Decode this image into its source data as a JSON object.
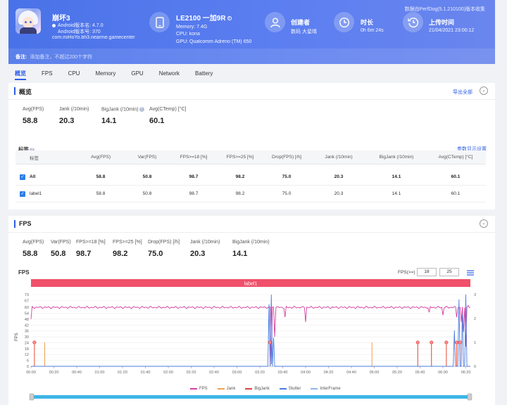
{
  "header": {
    "app_name": "崩坏3",
    "app_version": "Android版本名: 4.7.0",
    "app_build": "Android版本号: 370",
    "package": "com.miHoYo.bh3.nearme.gamecenter",
    "device_name": "LE2100 一加9R",
    "memory": "Memory: 7.4G",
    "cpu": "CPU: kona",
    "gpu": "GPU: Qualcomm Adreno (TM) 650",
    "creator_title": "创建者",
    "creator_value": "数码 大星晴",
    "duration_title": "时长",
    "duration_value": "0h 6m 24s",
    "upload_title": "上传时间",
    "upload_value": "21/04/2021 23:00:12",
    "data_source": "数据由PerfDog(5.1.210100)版本收集",
    "note_label": "备注:",
    "note_placeholder": "添加备注，不超过200个字符"
  },
  "tabs": [
    "概览",
    "FPS",
    "CPU",
    "Memory",
    "GPU",
    "Network",
    "Battery"
  ],
  "overview": {
    "title": "概览",
    "export_label": "导出全部",
    "stats": [
      {
        "label": "Avg(FPS)",
        "value": "58.8"
      },
      {
        "label": "Jank (/10min)",
        "value": "20.3"
      },
      {
        "label": "BigJank (/10min)",
        "value": "14.1"
      },
      {
        "label": "Avg(CTemp) [°C]",
        "value": "60.1"
      }
    ],
    "tags_label": "标签",
    "param_settings": "参数显示设置",
    "table": {
      "headers": [
        "标签",
        "Avg(FPS)",
        "Var(FPS)",
        "FPS>=18 [%]",
        "FPS>=25 [%]",
        "Drop(FPS) [/h]",
        "Jank (/10min)",
        "BigJank (/10min)",
        "Avg(CTemp) [°C]"
      ],
      "rows": [
        [
          "All",
          "58.8",
          "50.8",
          "98.7",
          "98.2",
          "75.0",
          "20.3",
          "14.1",
          "60.1"
        ],
        [
          "label1",
          "58.8",
          "50.8",
          "98.7",
          "98.2",
          "75.0",
          "20.3",
          "14.1",
          "60.1"
        ]
      ]
    }
  },
  "fps_section": {
    "title": "FPS",
    "stats": [
      {
        "label": "Avg(FPS)",
        "value": "58.8"
      },
      {
        "label": "Var(FPS)",
        "value": "50.8"
      },
      {
        "label": "FPS>=18 [%]",
        "value": "98.7"
      },
      {
        "label": "FPS>=25 [%]",
        "value": "98.2"
      },
      {
        "label": "Drop(FPS) [/h]",
        "value": "75.0"
      },
      {
        "label": "Jank (/10min)",
        "value": "20.3"
      },
      {
        "label": "BigJank (/10min)",
        "value": "14.1"
      }
    ],
    "chart_title": "FPS",
    "threshold_label": "FPS(>=)",
    "threshold_1": "18",
    "threshold_2": "25",
    "label_bar": "label1"
  },
  "chart_data": {
    "type": "line",
    "ylabel": "FPS",
    "y_ticks": [
      0,
      6,
      12,
      18,
      24,
      30,
      36,
      42,
      48,
      54,
      60,
      67,
      73
    ],
    "y2_ticks": [
      0,
      1,
      2,
      3
    ],
    "ylim": [
      0,
      73
    ],
    "y2lim": [
      0,
      3
    ],
    "x_ticks": [
      "00:00",
      "00:20",
      "00:40",
      "01:00",
      "01:20",
      "01:40",
      "02:00",
      "02:20",
      "02:40",
      "03:00",
      "03:20",
      "03:40",
      "04:00",
      "04:20",
      "04:40",
      "05:00",
      "05:20",
      "05:40",
      "06:00",
      "06:20"
    ],
    "duration_seconds": 384,
    "fps_base": 60,
    "fps_dips": [
      {
        "t": 0,
        "fps": 48
      },
      {
        "t": 210,
        "fps": 2
      },
      {
        "t": 213,
        "fps": 30
      },
      {
        "t": 222,
        "fps": 50
      },
      {
        "t": 240,
        "fps": 45
      },
      {
        "t": 348,
        "fps": 55
      },
      {
        "t": 360,
        "fps": 52
      },
      {
        "t": 372,
        "fps": 50
      },
      {
        "t": 376,
        "fps": 45
      },
      {
        "t": 378,
        "fps": 35
      },
      {
        "t": 380,
        "fps": 20
      },
      {
        "t": 382,
        "fps": 62
      }
    ],
    "jank_times": [
      3,
      12,
      209,
      298,
      338,
      350,
      363,
      372
    ],
    "bigjank_times": [
      3,
      209,
      338,
      350,
      363,
      372,
      375
    ],
    "series": [
      {
        "name": "FPS",
        "color": "#d63fa0"
      },
      {
        "name": "Jank",
        "color": "#f0a050"
      },
      {
        "name": "BigJank",
        "color": "#e04040"
      },
      {
        "name": "Stutter",
        "color": "#4b7be0"
      },
      {
        "name": "InterFrame",
        "color": "#8fb8e8"
      }
    ]
  }
}
